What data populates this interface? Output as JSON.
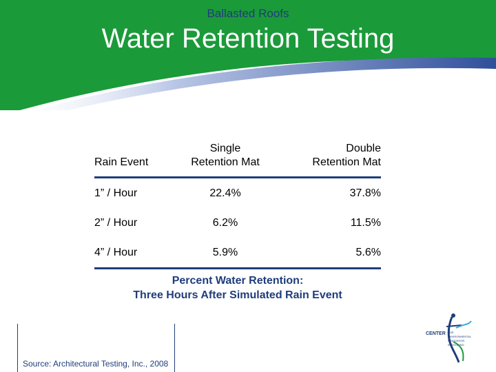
{
  "header": {
    "subtitle": "Ballasted Roofs",
    "title": "Water Retention Testing"
  },
  "table": {
    "columns": [
      "Rain Event",
      "Single\nRetention Mat",
      "Double\nRetention Mat"
    ],
    "rows": [
      {
        "event": "1” / Hour",
        "single": "22.4%",
        "double": "37.8%"
      },
      {
        "event": "2” / Hour",
        "single": "6.2%",
        "double": "11.5%"
      },
      {
        "event": "4” / Hour",
        "single": "5.9%",
        "double": "5.6%"
      }
    ]
  },
  "caption": {
    "line1": "Percent Water Retention:",
    "line2": "Three Hours After Simulated Rain Event"
  },
  "source": "Source: Architectural Testing, Inc., 2008",
  "logo": {
    "word": "CENTER",
    "tag1": "FOR",
    "tag2": "ENVIRONMENTAL",
    "tag3": "INNOVATION",
    "tag4": "IN ROOFING"
  },
  "colors": {
    "green": "#1b9a3a",
    "navy": "#1f3d7a",
    "cyan": "#3aa8d8"
  }
}
